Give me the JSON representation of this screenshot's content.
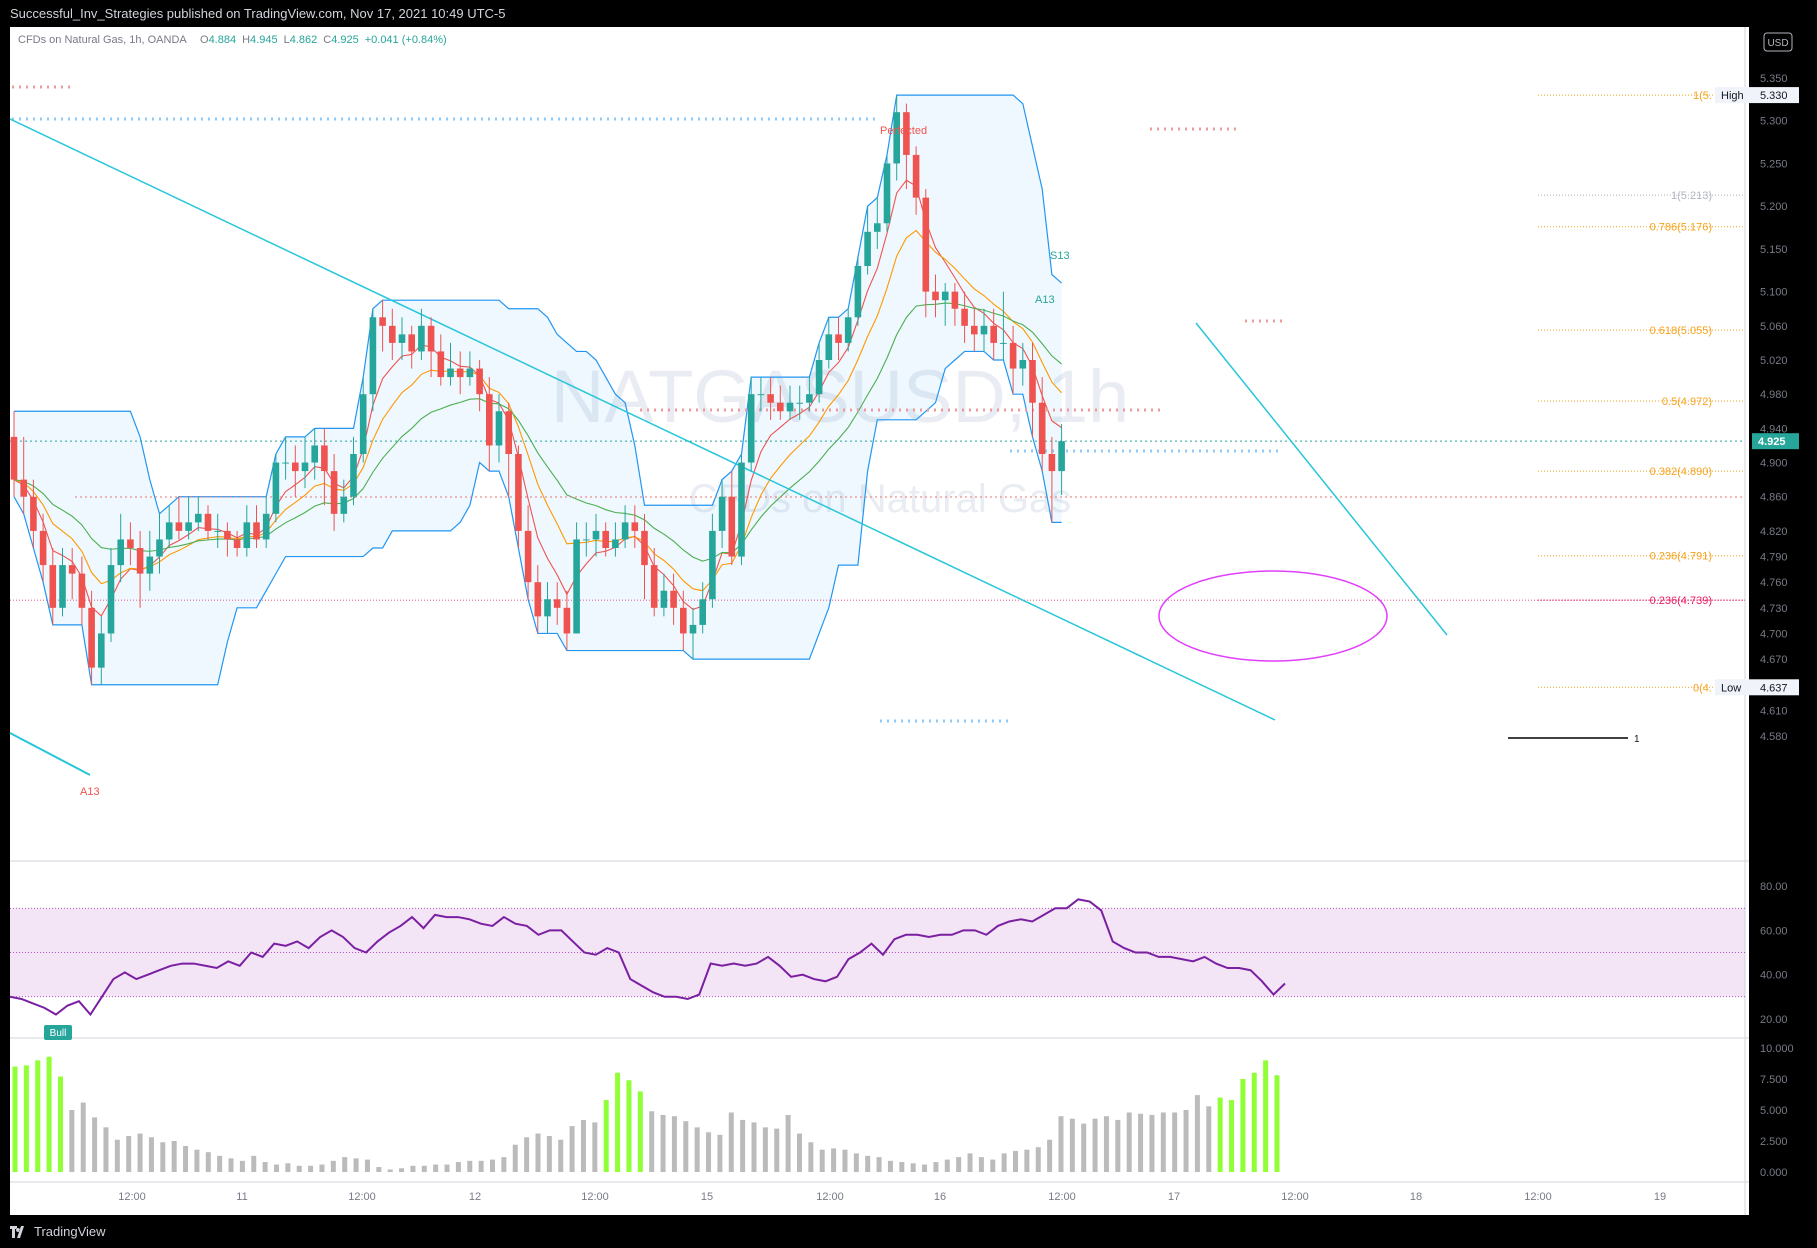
{
  "publisher": "Successful_Inv_Strategies published on TradingView.com, Nov 17, 2021 10:49 UTC-5",
  "brand": "TradingView",
  "chart_data": {
    "type": "candlestick",
    "symbol_line": {
      "name": "CFDs on Natural Gas, 1h, OANDA",
      "open_label": "O",
      "open": "4.884",
      "high_label": "H",
      "high": "4.945",
      "low_label": "L",
      "low": "4.862",
      "close_label": "C",
      "close": "4.925",
      "change": "+0.041 (+0.84%)"
    },
    "watermark": {
      "symbol": "NATGASUSD, 1h",
      "description": "CFDs on Natural Gas"
    },
    "currency": "USD",
    "price_axis": {
      "min": 4.58,
      "max": 5.35,
      "ticks": [
        "5.350",
        "5.300",
        "5.250",
        "5.200",
        "5.150",
        "5.100",
        "5.060",
        "5.020",
        "4.980",
        "4.940",
        "4.900",
        "4.860",
        "4.820",
        "4.790",
        "4.760",
        "4.730",
        "4.700",
        "4.670",
        "4.610",
        "4.580"
      ]
    },
    "time_axis": {
      "labels": [
        "12:00",
        "11",
        "12:00",
        "12",
        "12:00",
        "15",
        "12:00",
        "16",
        "12:00",
        "17",
        "12:00",
        "18",
        "12:00",
        "19"
      ]
    },
    "last_price": "4.925",
    "high_label": {
      "text": "High",
      "value": "5.330"
    },
    "low_label": {
      "text": "Low",
      "value": "4.637"
    },
    "fib_levels": [
      {
        "label": "1(5.",
        "price": 5.33,
        "color": "#f7a21b"
      },
      {
        "label": "1(5.213)",
        "price": 5.213,
        "color": "#b2b5be"
      },
      {
        "label": "0.786(5.176)",
        "price": 5.176,
        "color": "#f7a21b"
      },
      {
        "label": "0.618(5.055)",
        "price": 5.055,
        "color": "#f7a21b"
      },
      {
        "label": "0.5(4.972)",
        "price": 4.972,
        "color": "#f7a21b"
      },
      {
        "label": "0.382(4.890)",
        "price": 4.89,
        "color": "#f7a21b"
      },
      {
        "label": "0.236(4.791)",
        "price": 4.791,
        "color": "#f7a21b"
      },
      {
        "label": "0.236(4.739)",
        "price": 4.739,
        "color": "#e91e63"
      },
      {
        "label": "0(4.",
        "price": 4.637,
        "color": "#f7a21b"
      }
    ],
    "legend_line_label": "1",
    "annotations": [
      "Perfected",
      "A13",
      "S13",
      "A13",
      "Bull"
    ],
    "rsi": {
      "ticks": [
        "80.00",
        "60.00",
        "40.00",
        "20.00"
      ],
      "upper": 70,
      "lower": 30,
      "values": [
        30,
        29,
        27,
        25,
        22,
        26,
        28,
        22,
        30,
        38,
        41,
        38,
        40,
        42,
        44,
        45,
        45,
        44,
        43,
        46,
        44,
        50,
        48,
        54,
        53,
        55,
        52,
        57,
        60,
        57,
        52,
        50,
        55,
        59,
        62,
        66,
        61,
        67,
        66,
        66,
        65,
        63,
        62,
        66,
        63,
        62,
        58,
        60,
        60,
        55,
        50,
        49,
        52,
        50,
        38,
        35,
        32,
        30,
        30,
        29,
        31,
        45,
        44,
        45,
        44,
        45,
        48,
        44,
        39,
        40,
        38,
        37,
        39,
        47,
        50,
        54,
        49,
        56,
        58,
        58,
        57,
        58,
        58,
        60,
        60,
        58,
        62,
        64,
        65,
        64,
        67,
        70,
        70,
        74,
        73,
        69,
        55,
        52,
        50,
        50,
        48,
        48,
        47,
        46,
        48,
        45,
        43,
        43,
        42,
        37,
        31,
        36
      ]
    },
    "volume": {
      "ticks": [
        "10.000",
        "7.500",
        "5.000",
        "2.500",
        "0.000"
      ],
      "values": [
        8.5,
        8.6,
        9.0,
        9.3,
        7.7,
        5.0,
        5.6,
        4.4,
        3.6,
        2.6,
        2.9,
        3.1,
        2.8,
        2.4,
        2.5,
        2.1,
        1.8,
        1.6,
        1.3,
        1.1,
        0.9,
        1.3,
        0.8,
        0.6,
        0.7,
        0.5,
        0.5,
        0.6,
        0.9,
        1.2,
        1.1,
        1.0,
        0.4,
        0.2,
        0.3,
        0.5,
        0.5,
        0.6,
        0.6,
        0.8,
        0.9,
        0.9,
        1.0,
        1.2,
        2.2,
        2.8,
        3.1,
        2.9,
        2.6,
        3.7,
        4.2,
        4.0,
        5.8,
        8.0,
        7.4,
        6.5,
        4.9,
        4.6,
        4.5,
        4.1,
        3.6,
        3.2,
        3.0,
        4.8,
        4.2,
        4.0,
        3.6,
        3.5,
        4.6,
        3.1,
        2.4,
        1.8,
        1.9,
        1.8,
        1.5,
        1.3,
        1.2,
        0.9,
        0.8,
        0.7,
        0.6,
        0.8,
        1.0,
        1.2,
        1.5,
        1.2,
        1.0,
        1.5,
        1.7,
        1.8,
        2.0,
        2.6,
        4.5,
        4.3,
        3.9,
        4.3,
        4.5,
        4.2,
        4.8,
        4.7,
        4.6,
        4.8,
        4.8,
        5.0,
        6.2,
        5.3,
        6.0,
        5.8,
        7.5,
        8.0,
        9.0,
        7.8
      ]
    },
    "candles": [
      [
        4.93,
        4.88,
        4.96,
        4.86
      ],
      [
        4.88,
        4.86,
        4.93,
        4.84
      ],
      [
        4.86,
        4.82,
        4.88,
        4.8
      ],
      [
        4.82,
        4.78,
        4.84,
        4.76
      ],
      [
        4.78,
        4.73,
        4.8,
        4.71
      ],
      [
        4.73,
        4.78,
        4.8,
        4.72
      ],
      [
        4.78,
        4.77,
        4.8,
        4.74
      ],
      [
        4.77,
        4.73,
        4.79,
        4.71
      ],
      [
        4.73,
        4.66,
        4.75,
        4.64
      ],
      [
        4.66,
        4.7,
        4.72,
        4.64
      ],
      [
        4.7,
        4.78,
        4.8,
        4.69
      ],
      [
        4.78,
        4.81,
        4.84,
        4.76
      ],
      [
        4.81,
        4.8,
        4.83,
        4.78
      ],
      [
        4.8,
        4.77,
        4.82,
        4.73
      ],
      [
        4.77,
        4.79,
        4.82,
        4.75
      ],
      [
        4.79,
        4.81,
        4.84,
        4.77
      ],
      [
        4.81,
        4.83,
        4.85,
        4.8
      ],
      [
        4.83,
        4.82,
        4.86,
        4.81
      ],
      [
        4.82,
        4.83,
        4.86,
        4.81
      ],
      [
        4.83,
        4.84,
        4.86,
        4.82
      ],
      [
        4.84,
        4.82,
        4.85,
        4.81
      ],
      [
        4.82,
        4.82,
        4.84,
        4.8
      ],
      [
        4.82,
        4.81,
        4.83,
        4.79
      ],
      [
        4.81,
        4.8,
        4.82,
        4.79
      ],
      [
        4.8,
        4.83,
        4.85,
        4.79
      ],
      [
        4.83,
        4.81,
        4.85,
        4.8
      ],
      [
        4.81,
        4.84,
        4.86,
        4.8
      ],
      [
        4.84,
        4.9,
        4.91,
        4.83
      ],
      [
        4.9,
        4.9,
        4.93,
        4.88
      ],
      [
        4.9,
        4.89,
        4.92,
        4.86
      ],
      [
        4.89,
        4.9,
        4.93,
        4.87
      ],
      [
        4.9,
        4.92,
        4.94,
        4.88
      ],
      [
        4.92,
        4.89,
        4.94,
        4.85
      ],
      [
        4.89,
        4.84,
        4.91,
        4.82
      ],
      [
        4.84,
        4.86,
        4.88,
        4.83
      ],
      [
        4.86,
        4.91,
        4.93,
        4.85
      ],
      [
        4.91,
        4.98,
        5.0,
        4.9
      ],
      [
        4.98,
        5.07,
        5.08,
        4.96
      ],
      [
        5.07,
        5.06,
        5.09,
        5.03
      ],
      [
        5.06,
        5.04,
        5.08,
        5.02
      ],
      [
        5.04,
        5.05,
        5.07,
        5.02
      ],
      [
        5.05,
        5.03,
        5.06,
        5.01
      ],
      [
        5.03,
        5.06,
        5.08,
        5.02
      ],
      [
        5.06,
        5.03,
        5.07,
        5.0
      ],
      [
        5.03,
        5.0,
        5.05,
        4.99
      ],
      [
        5.0,
        5.01,
        5.04,
        4.99
      ],
      [
        5.01,
        5.0,
        5.03,
        4.98
      ],
      [
        5.0,
        5.01,
        5.03,
        4.99
      ],
      [
        5.01,
        4.98,
        5.02,
        4.96
      ],
      [
        4.98,
        4.92,
        5.0,
        4.89
      ],
      [
        4.92,
        4.96,
        4.98,
        4.9
      ],
      [
        4.96,
        4.91,
        4.97,
        4.86
      ],
      [
        4.91,
        4.82,
        4.92,
        4.8
      ],
      [
        4.82,
        4.76,
        4.85,
        4.74
      ],
      [
        4.76,
        4.72,
        4.78,
        4.7
      ],
      [
        4.72,
        4.74,
        4.76,
        4.7
      ],
      [
        4.74,
        4.73,
        4.76,
        4.71
      ],
      [
        4.73,
        4.7,
        4.75,
        4.68
      ],
      [
        4.7,
        4.81,
        4.83,
        4.7
      ],
      [
        4.81,
        4.81,
        4.83,
        4.79
      ],
      [
        4.81,
        4.82,
        4.84,
        4.79
      ],
      [
        4.82,
        4.8,
        4.83,
        4.79
      ],
      [
        4.8,
        4.81,
        4.83,
        4.79
      ],
      [
        4.81,
        4.83,
        4.85,
        4.8
      ],
      [
        4.83,
        4.82,
        4.85,
        4.8
      ],
      [
        4.82,
        4.78,
        4.84,
        4.74
      ],
      [
        4.78,
        4.73,
        4.8,
        4.72
      ],
      [
        4.73,
        4.75,
        4.77,
        4.72
      ],
      [
        4.75,
        4.73,
        4.77,
        4.71
      ],
      [
        4.73,
        4.7,
        4.75,
        4.68
      ],
      [
        4.7,
        4.71,
        4.73,
        4.67
      ],
      [
        4.71,
        4.74,
        4.76,
        4.7
      ],
      [
        4.74,
        4.82,
        4.84,
        4.73
      ],
      [
        4.82,
        4.86,
        4.88,
        4.8
      ],
      [
        4.86,
        4.79,
        4.89,
        4.78
      ],
      [
        4.79,
        4.9,
        4.91,
        4.78
      ],
      [
        4.9,
        4.98,
        5.0,
        4.89
      ],
      [
        4.98,
        4.98,
        5.0,
        4.96
      ],
      [
        4.98,
        4.97,
        5.0,
        4.95
      ],
      [
        4.97,
        4.96,
        4.99,
        4.95
      ],
      [
        4.96,
        4.97,
        4.99,
        4.95
      ],
      [
        4.97,
        4.97,
        4.99,
        4.95
      ],
      [
        4.97,
        4.98,
        5.0,
        4.96
      ],
      [
        4.98,
        5.02,
        5.04,
        4.97
      ],
      [
        5.02,
        5.05,
        5.07,
        5.01
      ],
      [
        5.05,
        5.04,
        5.07,
        5.02
      ],
      [
        5.04,
        5.07,
        5.08,
        5.03
      ],
      [
        5.07,
        5.13,
        5.14,
        5.06
      ],
      [
        5.13,
        5.17,
        5.2,
        5.12
      ],
      [
        5.17,
        5.18,
        5.21,
        5.15
      ],
      [
        5.18,
        5.25,
        5.26,
        5.17
      ],
      [
        5.25,
        5.31,
        5.33,
        5.23
      ],
      [
        5.31,
        5.26,
        5.32,
        5.22
      ],
      [
        5.26,
        5.21,
        5.27,
        5.19
      ],
      [
        5.21,
        5.1,
        5.22,
        5.07
      ],
      [
        5.1,
        5.09,
        5.12,
        5.07
      ],
      [
        5.09,
        5.1,
        5.11,
        5.06
      ],
      [
        5.1,
        5.08,
        5.11,
        5.06
      ],
      [
        5.08,
        5.06,
        5.1,
        5.04
      ],
      [
        5.06,
        5.05,
        5.08,
        5.03
      ],
      [
        5.05,
        5.06,
        5.08,
        5.03
      ],
      [
        5.06,
        5.04,
        5.08,
        5.02
      ],
      [
        5.04,
        5.04,
        5.1,
        5.02
      ],
      [
        5.04,
        5.01,
        5.06,
        4.98
      ],
      [
        5.01,
        5.02,
        5.04,
        4.99
      ],
      [
        5.02,
        4.97,
        5.04,
        4.93
      ],
      [
        4.97,
        4.91,
        5.0,
        4.89
      ],
      [
        4.91,
        4.89,
        4.93,
        4.83
      ],
      [
        4.89,
        4.925,
        4.945,
        4.862
      ]
    ]
  }
}
